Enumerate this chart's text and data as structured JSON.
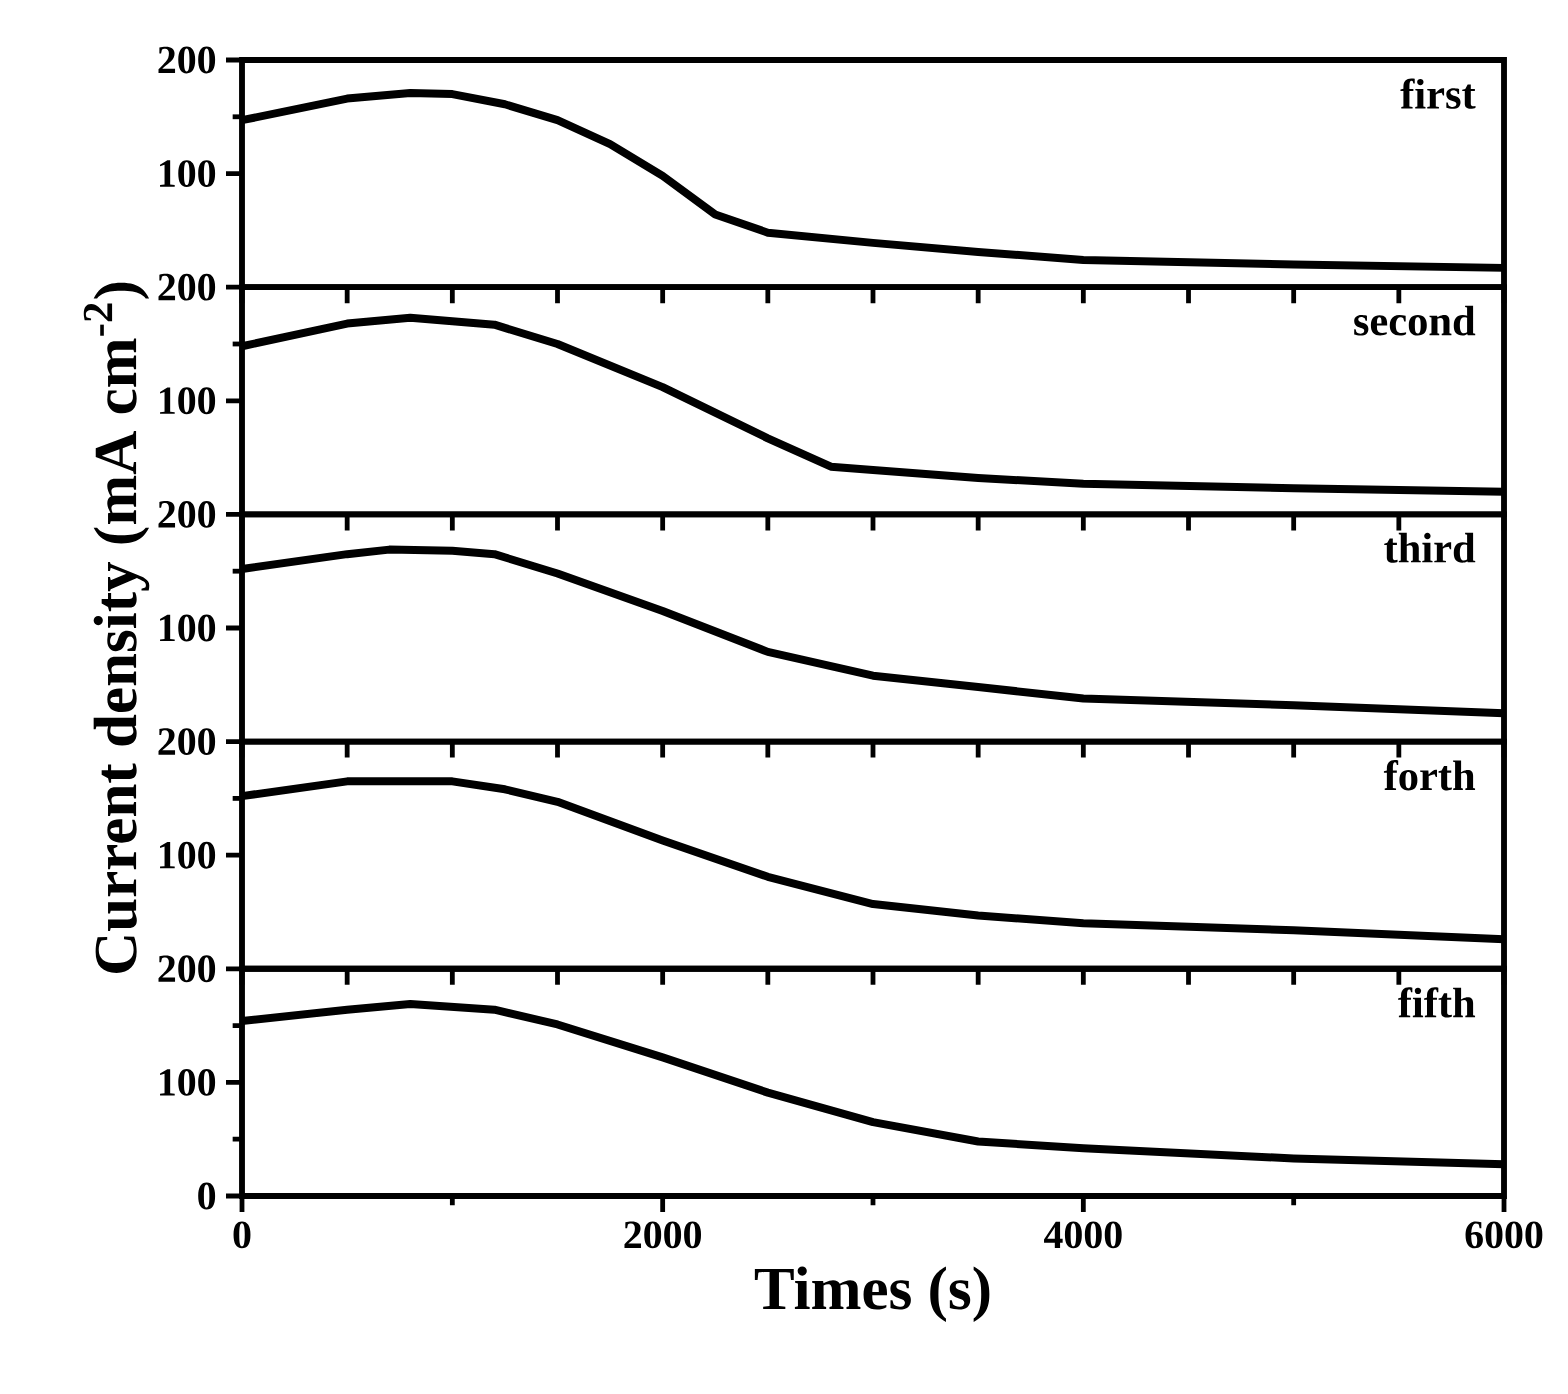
{
  "chart_data": [
    {
      "type": "line",
      "x": [
        0,
        500,
        800,
        1000,
        1250,
        1500,
        1750,
        2000,
        2250,
        2500,
        3000,
        3500,
        4000,
        5000,
        6000
      ],
      "series": [
        {
          "name": "first",
          "color": "#000000",
          "values": [
            147,
            166,
            171,
            170,
            161,
            147,
            126,
            98,
            64,
            48,
            39,
            31,
            24,
            20,
            17
          ]
        }
      ],
      "xlim": [
        0,
        6000
      ],
      "ylim": [
        0,
        200
      ],
      "yticks": [
        100,
        200
      ],
      "tick_labels": "y",
      "line_style": "solid"
    },
    {
      "type": "line",
      "x": [
        0,
        500,
        800,
        1200,
        1500,
        2000,
        2500,
        2800,
        3000,
        3500,
        4000,
        5000,
        6000
      ],
      "series": [
        {
          "name": "second",
          "color": "#000000",
          "values": [
            148,
            168,
            173,
            167,
            150,
            112,
            67,
            42,
            39,
            32,
            27,
            23,
            20
          ]
        }
      ],
      "xlim": [
        0,
        6000
      ],
      "ylim": [
        0,
        200
      ],
      "yticks": [
        100,
        200
      ],
      "tick_labels": "y",
      "line_style": "solid"
    },
    {
      "type": "line",
      "x": [
        0,
        500,
        700,
        1000,
        1200,
        1500,
        2000,
        2500,
        3000,
        3500,
        4000,
        5000,
        6000
      ],
      "series": [
        {
          "name": "third",
          "color": "#000000",
          "values": [
            152,
            165,
            169,
            168,
            165,
            148,
            115,
            79,
            58,
            48,
            38,
            32,
            25
          ]
        }
      ],
      "xlim": [
        0,
        6000
      ],
      "ylim": [
        0,
        200
      ],
      "yticks": [
        100,
        200
      ],
      "tick_labels": "y",
      "line_style": "solid",
      "ylabel": "Current density (mA cm$^{-2}$)"
    },
    {
      "type": "line",
      "x": [
        0,
        500,
        1000,
        1250,
        1500,
        2000,
        2500,
        3000,
        3500,
        4000,
        5000,
        6000
      ],
      "series": [
        {
          "name": "forth",
          "color": "#000000",
          "values": [
            152,
            165,
            165,
            158,
            147,
            113,
            81,
            57,
            47,
            40,
            34,
            26
          ]
        }
      ],
      "xlim": [
        0,
        6000
      ],
      "ylim": [
        0,
        200
      ],
      "yticks": [
        100,
        200
      ],
      "tick_labels": "y",
      "line_style": "solid"
    },
    {
      "type": "line",
      "x": [
        0,
        500,
        800,
        1200,
        1500,
        2000,
        2500,
        3000,
        3500,
        4000,
        5000,
        6000
      ],
      "series": [
        {
          "name": "fifth",
          "color": "#000000",
          "values": [
            154,
            164,
            169,
            164,
            151,
            122,
            91,
            65,
            48,
            42,
            33,
            28
          ]
        }
      ],
      "xlim": [
        0,
        6000
      ],
      "ylim": [
        0,
        200
      ],
      "xticks": [
        0,
        2000,
        4000,
        6000
      ],
      "yticks": [
        0,
        100,
        200
      ],
      "line_style": "solid",
      "xlabel": "Times (s)"
    }
  ]
}
